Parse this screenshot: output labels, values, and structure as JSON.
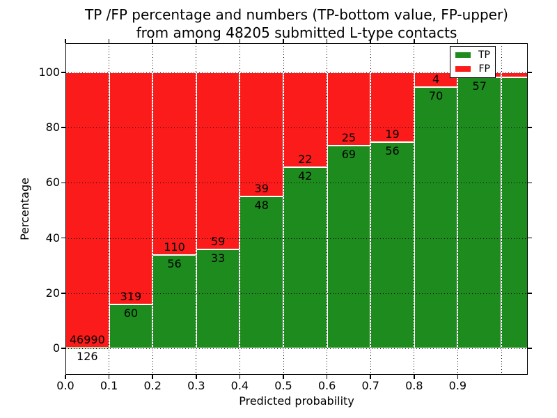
{
  "figure": {
    "title_line1": "TP /FP percentage and numbers (TP-bottom value, FP-upper)",
    "title_line2": "from among 48205 submitted L-type contacts"
  },
  "chart_data": {
    "type": "bar",
    "stacked": true,
    "title": "TP /FP percentage and numbers (TP-bottom value, FP-upper) from among 48205 submitted L-type contacts",
    "total_submitted_contacts": 48205,
    "xlabel": "Predicted probability",
    "ylabel": "Percentage",
    "x_tick_labels": [
      "0.0",
      "0.1",
      "0.2",
      "0.3",
      "0.4",
      "0.5",
      "0.6",
      "0.7",
      "0.8",
      "0.9"
    ],
    "y_tick_values": [
      0,
      20,
      40,
      60,
      80,
      100
    ],
    "ylim": [
      -10,
      110
    ],
    "xlim": [
      0,
      1.06
    ],
    "grid": "dotted both axes",
    "colors": {
      "tp": "#1e8b1e",
      "fp": "#fb1b1b"
    },
    "legend": {
      "position": "upper right",
      "entries": [
        {
          "label": "TP",
          "color": "#1e8b1e"
        },
        {
          "label": "FP",
          "color": "#fb1b1b"
        }
      ]
    },
    "bins": [
      {
        "range": [
          0.0,
          0.1
        ],
        "tp": 126,
        "fp": 46990,
        "tp_label": "126",
        "fp_label": "46990"
      },
      {
        "range": [
          0.1,
          0.2
        ],
        "tp": 60,
        "fp": 319,
        "tp_label": "60",
        "fp_label": "319"
      },
      {
        "range": [
          0.2,
          0.3
        ],
        "tp": 56,
        "fp": 110,
        "tp_label": "56",
        "fp_label": "110"
      },
      {
        "range": [
          0.3,
          0.4
        ],
        "tp": 33,
        "fp": 59,
        "tp_label": "33",
        "fp_label": "59"
      },
      {
        "range": [
          0.4,
          0.5
        ],
        "tp": 48,
        "fp": 39,
        "tp_label": "48",
        "fp_label": "39"
      },
      {
        "range": [
          0.5,
          0.6
        ],
        "tp": 42,
        "fp": 22,
        "tp_label": "42",
        "fp_label": "22"
      },
      {
        "range": [
          0.6,
          0.7
        ],
        "tp": 69,
        "fp": 25,
        "tp_label": "69",
        "fp_label": "25"
      },
      {
        "range": [
          0.7,
          0.8
        ],
        "tp": 56,
        "fp": 19,
        "tp_label": "56",
        "fp_label": "19"
      },
      {
        "range": [
          0.8,
          0.9
        ],
        "tp": 70,
        "fp": 4,
        "tp_label": "70",
        "fp_label": "4"
      },
      {
        "range": [
          0.9,
          1.0
        ],
        "tp": 57,
        "fp": 1,
        "tp_label": "57",
        "fp_label": "",
        "fp_estimated": true
      }
    ]
  }
}
